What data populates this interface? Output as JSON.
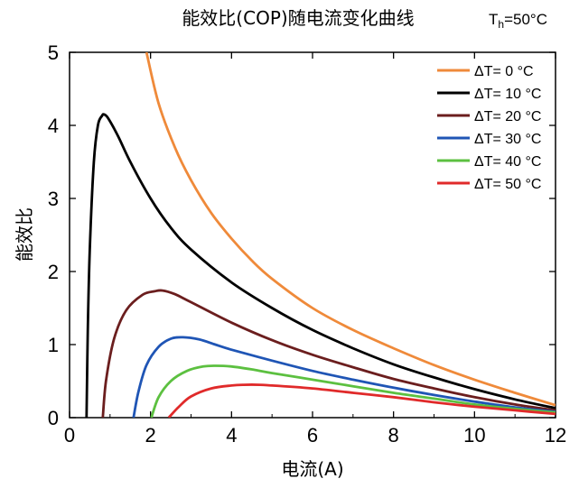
{
  "chart_data": {
    "type": "line",
    "title": "能效比(COP)随电流变化曲线",
    "condition": {
      "prefix": "T",
      "subscript": "h",
      "value": "=50°C"
    },
    "xlabel": "电流(A)",
    "ylabel": "能效比",
    "xlim": [
      0,
      12
    ],
    "ylim": [
      0,
      5
    ],
    "xticks": [
      0,
      2,
      4,
      6,
      8,
      10,
      12
    ],
    "yticks": [
      0,
      1,
      2,
      3,
      4,
      5
    ],
    "grid": false,
    "legend_position": "top-right",
    "series": [
      {
        "name": "ΔT= 0 °C",
        "color": "#ef8a3a",
        "x": [
          1.9,
          2.2,
          2.6,
          3,
          3.5,
          4,
          4.5,
          5,
          6,
          7,
          8,
          9,
          10,
          11,
          12
        ],
        "y": [
          5.0,
          4.3,
          3.7,
          3.25,
          2.8,
          2.45,
          2.15,
          1.9,
          1.5,
          1.2,
          0.95,
          0.72,
          0.52,
          0.34,
          0.17
        ]
      },
      {
        "name": "ΔT= 10 °C",
        "color": "#000000",
        "x": [
          0.42,
          0.45,
          0.5,
          0.6,
          0.7,
          0.8,
          0.85,
          0.95,
          1.2,
          1.5,
          2,
          2.5,
          3,
          4,
          5,
          6,
          7,
          8,
          9,
          10,
          11,
          12
        ],
        "y": [
          0,
          1.2,
          2.3,
          3.5,
          4.0,
          4.13,
          4.15,
          4.1,
          3.85,
          3.5,
          3.0,
          2.6,
          2.3,
          1.85,
          1.5,
          1.2,
          0.95,
          0.73,
          0.55,
          0.39,
          0.25,
          0.13
        ]
      },
      {
        "name": "ΔT= 20 °C",
        "color": "#6b1e1e",
        "x": [
          0.82,
          0.9,
          1.1,
          1.4,
          1.8,
          2.1,
          2.3,
          2.6,
          3,
          4,
          5,
          6,
          7,
          8,
          9,
          10,
          11,
          12
        ],
        "y": [
          0,
          0.5,
          1.08,
          1.47,
          1.68,
          1.73,
          1.74,
          1.69,
          1.58,
          1.3,
          1.06,
          0.86,
          0.69,
          0.53,
          0.4,
          0.28,
          0.18,
          0.1
        ]
      },
      {
        "name": "ΔT= 30 °C",
        "color": "#1f55b5",
        "x": [
          1.58,
          1.7,
          1.9,
          2.2,
          2.5,
          2.8,
          3.2,
          3.6,
          4,
          5,
          6,
          7,
          8,
          9,
          10,
          11,
          12
        ],
        "y": [
          0,
          0.35,
          0.72,
          0.97,
          1.08,
          1.1,
          1.07,
          1.0,
          0.93,
          0.78,
          0.64,
          0.52,
          0.41,
          0.31,
          0.22,
          0.14,
          0.08
        ]
      },
      {
        "name": "ΔT= 40 °C",
        "color": "#5cc040",
        "x": [
          2.02,
          2.2,
          2.5,
          2.9,
          3.3,
          3.6,
          4,
          4.5,
          5,
          6,
          7,
          8,
          9,
          10,
          11,
          12
        ],
        "y": [
          0,
          0.28,
          0.5,
          0.64,
          0.7,
          0.71,
          0.7,
          0.66,
          0.61,
          0.52,
          0.43,
          0.34,
          0.26,
          0.18,
          0.12,
          0.07
        ]
      },
      {
        "name": "ΔT= 50 °C",
        "color": "#e02a2a",
        "x": [
          2.45,
          2.7,
          3,
          3.5,
          4,
          4.3,
          4.7,
          5,
          6,
          7,
          8,
          9,
          10,
          11,
          12
        ],
        "y": [
          0,
          0.15,
          0.29,
          0.4,
          0.44,
          0.45,
          0.45,
          0.44,
          0.4,
          0.34,
          0.28,
          0.21,
          0.15,
          0.1,
          0.05
        ]
      }
    ]
  }
}
